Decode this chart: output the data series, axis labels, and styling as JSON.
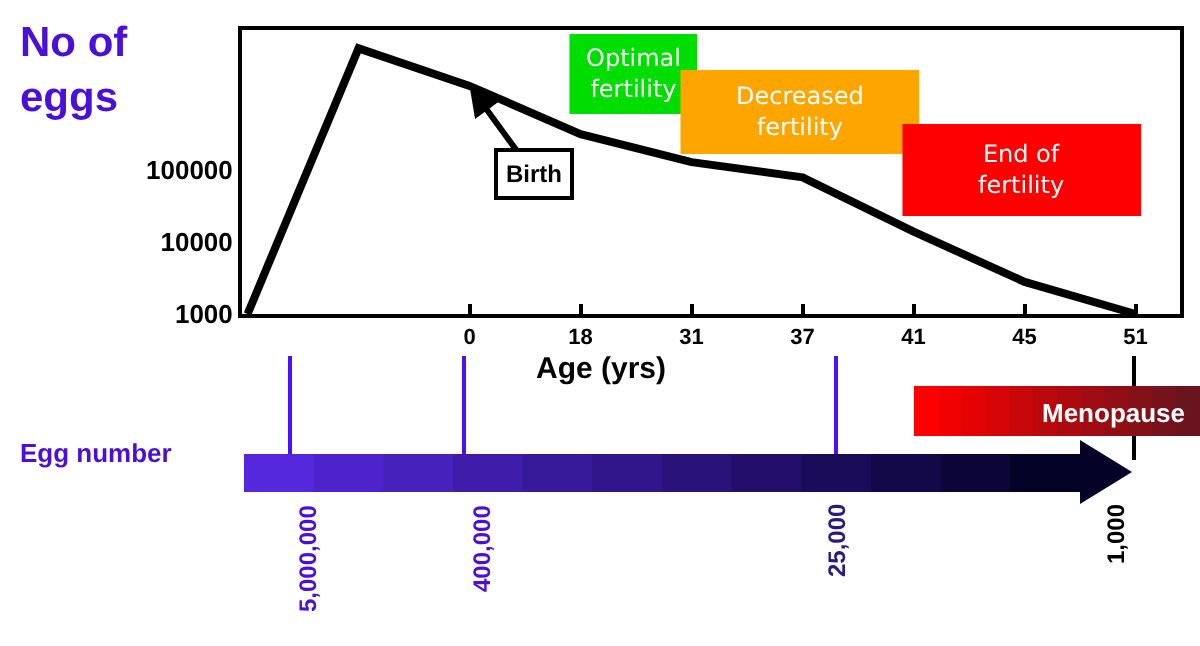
{
  "chart_data": {
    "type": "line",
    "ylabel": "No of eggs",
    "xlabel": "Age (yrs)",
    "categories": [
      null,
      null,
      "0",
      "18",
      "31",
      "37",
      "41",
      "45",
      "51"
    ],
    "series": [
      {
        "color": "#000000",
        "values": [
          1000,
          5000000,
          1500000,
          320000,
          130000,
          80000,
          14000,
          2800,
          1000
        ]
      }
    ],
    "log": "y",
    "ylim": [
      1000,
      9000000
    ],
    "yticks": [
      1000,
      10000,
      100000
    ],
    "marker": "none",
    "line_style": "solid",
    "bands": [
      {
        "axis": "x",
        "from": "18",
        "to": "31",
        "label": "Optimal fertility",
        "color": "#00dd00"
      },
      {
        "axis": "x",
        "from": "31",
        "to": "41",
        "label": "Decreased fertility",
        "color": "#ffa500"
      },
      {
        "axis": "x",
        "from": "41",
        "to": "51",
        "label": "End of fertility",
        "color": "#ff0000"
      }
    ],
    "annotations": [
      {
        "text": "Birth",
        "x": "0",
        "y": 1500000
      },
      "Menopause",
      "Egg number",
      "5,000,000",
      "400,000",
      "25,000",
      "1,000"
    ]
  }
}
